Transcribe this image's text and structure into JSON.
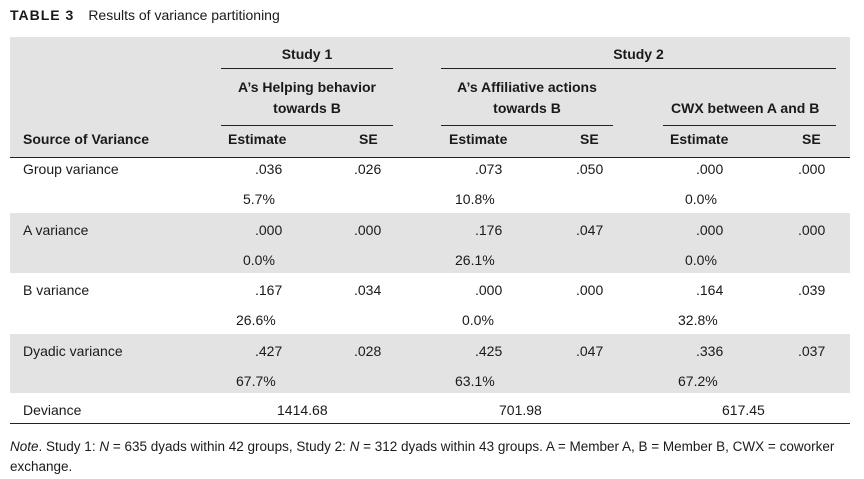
{
  "caption": {
    "number": "TABLE 3",
    "title": "Results of variance partitioning"
  },
  "headers": {
    "study1": "Study 1",
    "study2": "Study 2",
    "s1_measure_line1": "A’s Helping behavior",
    "s1_measure_line2": "towards B",
    "s2_measure1_line1": "A’s Affiliative actions",
    "s2_measure1_line2": "towards B",
    "s2_measure2": "CWX between A and B",
    "source": "Source of Variance",
    "estimate": "Estimate",
    "se": "SE"
  },
  "rows": [
    {
      "label": "Group variance",
      "values": [
        ".036",
        ".026",
        ".073",
        ".050",
        ".000",
        ".000"
      ],
      "pcts": [
        "5.7%",
        "10.8%",
        "0.0%"
      ]
    },
    {
      "label": "A variance",
      "values": [
        ".000",
        ".000",
        ".176",
        ".047",
        ".000",
        ".000"
      ],
      "pcts": [
        "0.0%",
        "26.1%",
        "0.0%"
      ]
    },
    {
      "label": "B variance",
      "values": [
        ".167",
        ".034",
        ".000",
        ".000",
        ".164",
        ".039"
      ],
      "pcts": [
        "26.6%",
        "0.0%",
        "32.8%"
      ]
    },
    {
      "label": "Dyadic variance",
      "values": [
        ".427",
        ".028",
        ".425",
        ".047",
        ".336",
        ".037"
      ],
      "pcts": [
        "67.7%",
        "63.1%",
        "67.2%"
      ]
    }
  ],
  "deviance": {
    "label": "Deviance",
    "values": [
      "1414.68",
      "701.98",
      "617.45"
    ]
  },
  "note": {
    "lead": "Note",
    "t1": ". Study 1: ",
    "n1": "N",
    "t2": " = 635 dyads within 42 groups, Study 2: ",
    "n2": "N",
    "t3": " = 312 dyads within 43 groups. A = Member A, B = Member B, CWX = coworker exchange."
  }
}
